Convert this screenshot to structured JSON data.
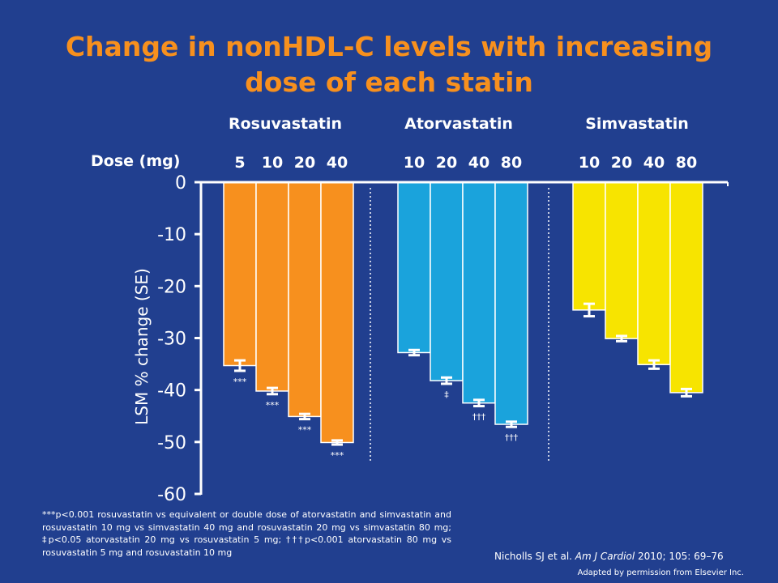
{
  "title_line1": "Change in nonHDL-C levels with increasing",
  "title_line2": "dose of each statin",
  "dose_label": "Dose (mg)",
  "footnote": "***p<0.001 rosuvastatin vs equivalent or double dose of atorvastatin and simvastatin and rosuvastatin 10 mg vs simvastatin 40 mg and rosuvastatin 20 mg vs simvastatin 80 mg; ‡p<0.05 atorvastatin 20 mg vs rosuvastatin 5 mg; †††p<0.001 atorvastatin 80 mg vs rosuvastatin 5 mg and rosuvastatin 10 mg",
  "citation": {
    "authors": "Nicholls SJ et al.",
    "journal": "Am J Cardiol",
    "details": "2010;  105: 69–76"
  },
  "permission": "Adapted by permission from Elsevier Inc.",
  "colors": {
    "background": "#213f8f",
    "title": "#f7901e",
    "rosuvastatin": "#f7901e",
    "atorvastatin": "#1aa3dc",
    "simvastatin": "#f7e400",
    "text": "#ffffff"
  },
  "chart_data": {
    "type": "bar",
    "ylabel": "LSM % change (SE)",
    "ylim": [
      -60,
      0
    ],
    "yticks": [
      0,
      -10,
      -20,
      -30,
      -40,
      -50,
      -60
    ],
    "grid": false,
    "groups": [
      {
        "name": "Rosuvastatin",
        "color": "#f7901e",
        "doses": [
          "5",
          "10",
          "20",
          "40"
        ],
        "values": [
          -35.3,
          -40.2,
          -45.1,
          -50.1
        ],
        "se": [
          1.0,
          0.6,
          0.5,
          0.4
        ],
        "annotations": [
          "***",
          "***",
          "***",
          "***"
        ]
      },
      {
        "name": "Atorvastatin",
        "color": "#1aa3dc",
        "doses": [
          "10",
          "20",
          "40",
          "80"
        ],
        "values": [
          -32.8,
          -38.2,
          -42.5,
          -46.6
        ],
        "se": [
          0.5,
          0.6,
          0.6,
          0.5
        ],
        "annotations": [
          "",
          "‡",
          "†††",
          "†††"
        ]
      },
      {
        "name": "Simvastatin",
        "color": "#f7e400",
        "doses": [
          "10",
          "20",
          "40",
          "80"
        ],
        "values": [
          -24.6,
          -30.1,
          -35.1,
          -40.5
        ],
        "se": [
          1.2,
          0.5,
          0.8,
          0.7
        ],
        "annotations": [
          "",
          "",
          "",
          ""
        ]
      }
    ]
  }
}
